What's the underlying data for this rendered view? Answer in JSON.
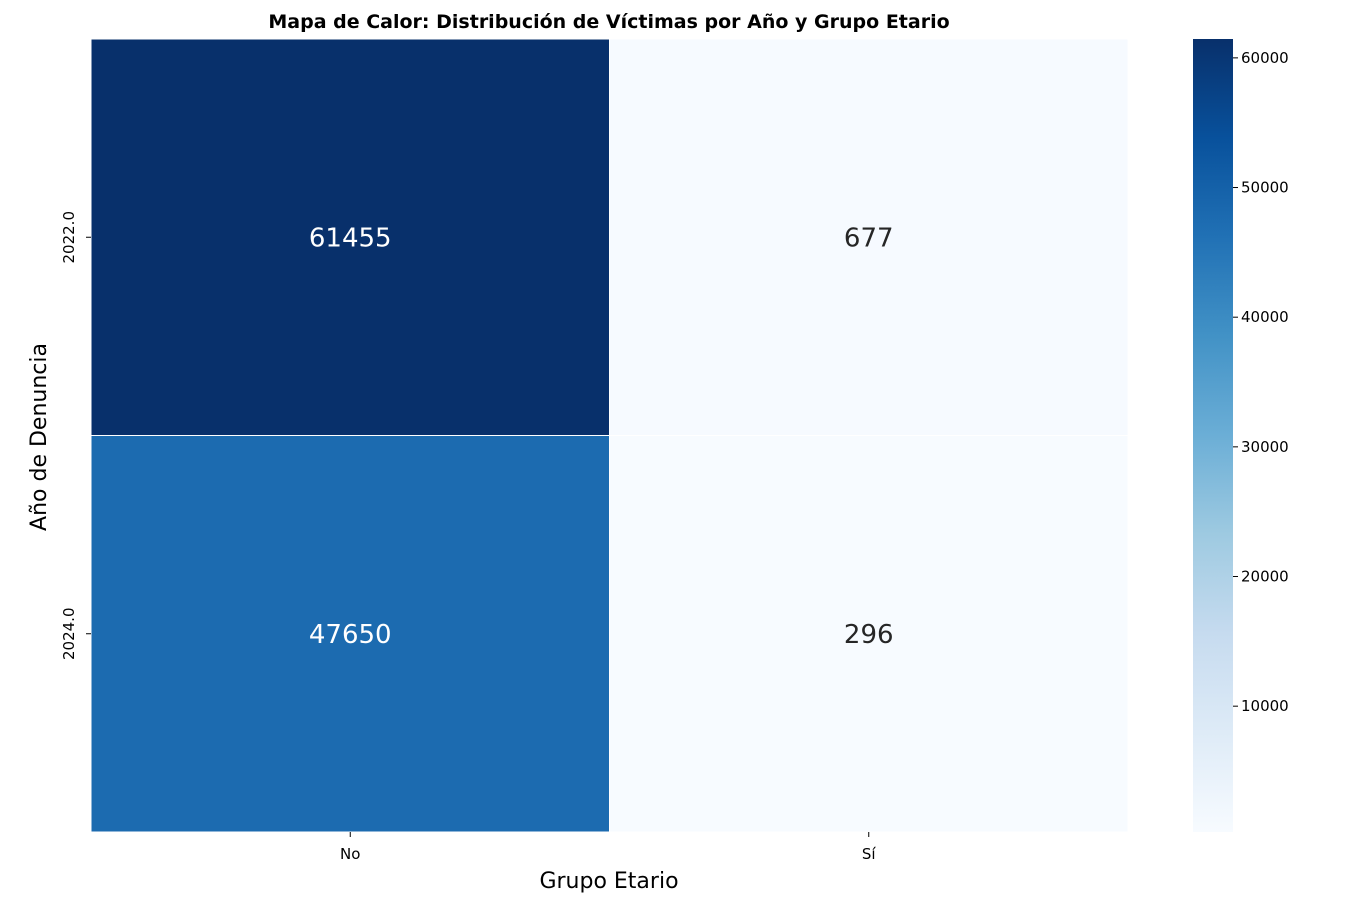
{
  "chart_data": {
    "type": "heatmap",
    "title": "Mapa de Calor: Distribución de Víctimas por Año y Grupo Etario",
    "xlabel": "Grupo Etario",
    "ylabel": "Año de Denuncia",
    "x_categories": [
      "No",
      "Sí"
    ],
    "y_categories": [
      "2022.0",
      "2024.0"
    ],
    "values": [
      [
        61455,
        677
      ],
      [
        47650,
        296
      ]
    ],
    "colormap": "Blues",
    "colorbar": {
      "min": 296,
      "max": 61455,
      "ticks": [
        10000,
        20000,
        30000,
        40000,
        50000,
        60000
      ]
    },
    "grid": false
  }
}
